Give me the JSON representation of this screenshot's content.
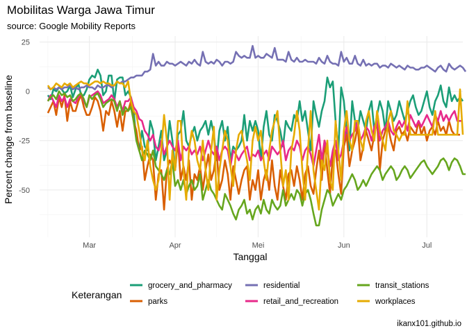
{
  "chart_data": {
    "type": "line",
    "title": "Mobilitas Warga Jawa Timur",
    "subtitle": "source: Google Mobility Reports",
    "xlabel": "Tanggal",
    "ylabel": "Percent change from baseline",
    "caption": "ikanx101.github.io",
    "legend_title": "Keterangan",
    "x_start": "2020-02-15",
    "x_step_days": 1,
    "xlim_days": [
      -3,
      150
    ],
    "ylim": [
      -74,
      28
    ],
    "x_ticks": [
      {
        "label": "Mar",
        "day": 15
      },
      {
        "label": "Apr",
        "day": 46
      },
      {
        "label": "Mei",
        "day": 76
      },
      {
        "label": "Jun",
        "day": 107
      },
      {
        "label": "Jul",
        "day": 137
      }
    ],
    "x_minor_days": [
      0,
      30.5,
      61,
      91.5,
      122,
      152
    ],
    "y_ticks": [
      25,
      0,
      -25,
      -50
    ],
    "y_minor": [
      12.5,
      -12.5,
      -37.5,
      -62.5
    ],
    "grid": true,
    "legend_position": "bottom",
    "series": [
      {
        "name": "grocery_and_pharmacy",
        "color": "#1b9e77",
        "values": [
          -2,
          -4,
          1,
          0,
          2,
          1,
          -1,
          0,
          3,
          -3,
          1,
          4,
          -2,
          -2,
          1,
          6,
          8,
          7,
          11,
          8,
          -2,
          0,
          8,
          8,
          -5,
          6,
          7,
          7,
          -2,
          0,
          -3,
          -10,
          -25,
          -30,
          -20,
          -28,
          -30,
          -15,
          -20,
          -35,
          -28,
          -20,
          -35,
          -30,
          -15,
          -25,
          -40,
          -22,
          -20,
          -10,
          -25,
          -28,
          -22,
          -18,
          -25,
          -20,
          -18,
          -15,
          -22,
          -15,
          -22,
          -35,
          -20,
          -15,
          -25,
          -18,
          -35,
          -28,
          -30,
          -28,
          -25,
          -12,
          -25,
          -15,
          -20,
          -15,
          -20,
          -35,
          -18,
          -10,
          -22,
          -25,
          -12,
          -15,
          -20,
          -28,
          -15,
          -18,
          -20,
          -12,
          -15,
          -5,
          -15,
          -10,
          -20,
          -30,
          -5,
          -12,
          -18,
          -10,
          -5,
          7,
          2,
          5,
          -15,
          -30,
          2,
          -5,
          -20,
          -30,
          -5,
          -15,
          -20,
          -10,
          -15,
          -20,
          -10,
          -5,
          -20,
          -12,
          -5,
          -10,
          -20,
          -5,
          -10,
          -15,
          -12,
          -5,
          -10,
          -15,
          -10,
          -5,
          -2,
          -8,
          -12,
          -10,
          -5,
          0,
          -8,
          -12,
          -5,
          -2,
          3,
          -5,
          -8,
          2,
          -5,
          -2,
          -5,
          -3,
          -5
        ]
      },
      {
        "name": "parks",
        "color": "#d95f02",
        "values": [
          -11,
          -8,
          -5,
          -12,
          -3,
          -8,
          -2,
          -15,
          -5,
          -10,
          -10,
          -5,
          -2,
          -8,
          -12,
          -12,
          -8,
          -3,
          -5,
          -10,
          -20,
          -10,
          -12,
          -5,
          -10,
          -18,
          -10,
          -20,
          -10,
          -10,
          -5,
          -15,
          -20,
          -30,
          -28,
          -45,
          -38,
          -32,
          -35,
          -55,
          -42,
          -40,
          -60,
          -40,
          -35,
          -38,
          -40,
          -25,
          -45,
          -38,
          -45,
          -35,
          -55,
          -42,
          -45,
          -38,
          -50,
          -40,
          -32,
          -45,
          -40,
          -30,
          -50,
          -45,
          -35,
          -42,
          -55,
          -38,
          -45,
          -52,
          -45,
          -40,
          -38,
          -55,
          -45,
          -50,
          -40,
          -55,
          -45,
          -40,
          -50,
          -35,
          -48,
          -55,
          -40,
          -48,
          -55,
          -42,
          -40,
          -48,
          -38,
          -45,
          -55,
          -42,
          -38,
          -48,
          -52,
          -40,
          -30,
          -45,
          -25,
          -40,
          -52,
          -32,
          -30,
          -42,
          -52,
          -28,
          -22,
          -38,
          -30,
          -25,
          -18,
          -35,
          -28,
          -20,
          -25,
          -30,
          -22,
          -15,
          -40,
          -25,
          -20,
          -18,
          -25,
          -30,
          -20,
          -18,
          -22,
          -20,
          -25,
          -18,
          -20,
          -22,
          -15,
          -22,
          -18,
          -25,
          -20,
          -18,
          -22,
          -15,
          -20,
          -18,
          -22,
          -15,
          -20,
          -22,
          -22,
          -22
        ]
      },
      {
        "name": "residential",
        "color": "#7570b3",
        "values": [
          2,
          1,
          2,
          1,
          2,
          1,
          2,
          2,
          3,
          1,
          2,
          1,
          2,
          2,
          3,
          2,
          2,
          1,
          3,
          2,
          2,
          3,
          3,
          2,
          3,
          5,
          4,
          5,
          5,
          6,
          7,
          7,
          8,
          8,
          8,
          10,
          10,
          11,
          19,
          13,
          15,
          13,
          13,
          15,
          14,
          14,
          13,
          14,
          15,
          14,
          13,
          15,
          14,
          16,
          14,
          13,
          20,
          15,
          14,
          15,
          14,
          16,
          15,
          13,
          15,
          15,
          14,
          15,
          20,
          18,
          17,
          18,
          17,
          17,
          23,
          17,
          18,
          17,
          17,
          19,
          18,
          17,
          22,
          16,
          16,
          16,
          15,
          20,
          16,
          15,
          17,
          15,
          15,
          16,
          15,
          15,
          15,
          14,
          17,
          15,
          14,
          18,
          15,
          14,
          14,
          13,
          20,
          15,
          17,
          14,
          14,
          18,
          14,
          13,
          16,
          13,
          14,
          13,
          14,
          14,
          12,
          13,
          13,
          12,
          14,
          13,
          12,
          13,
          12,
          11,
          13,
          12,
          12,
          11,
          11,
          12,
          12,
          13,
          12,
          11,
          10,
          12,
          13,
          11,
          10,
          14,
          12,
          11,
          12,
          13,
          12,
          10
        ]
      },
      {
        "name": "retail_and_recreation",
        "color": "#e7298a",
        "values": [
          -5,
          -2,
          -5,
          -8,
          -2,
          -5,
          -3,
          -8,
          -4,
          -5,
          -6,
          -3,
          -1,
          -5,
          -8,
          -3,
          -2,
          -1,
          0,
          -2,
          -6,
          -5,
          -4,
          -2,
          -4,
          -8,
          -5,
          -10,
          -5,
          -5,
          -3,
          -8,
          -10,
          -14,
          -15,
          -20,
          -22,
          -25,
          -22,
          -28,
          -30,
          -25,
          -32,
          -28,
          -25,
          -28,
          -30,
          -25,
          -35,
          -28,
          -30,
          -28,
          -32,
          -30,
          -32,
          -28,
          -35,
          -30,
          -25,
          -30,
          -32,
          -28,
          -35,
          -30,
          -28,
          -30,
          -38,
          -30,
          -32,
          -35,
          -32,
          -30,
          -28,
          -35,
          -32,
          -33,
          -30,
          -35,
          -32,
          -30,
          -35,
          -28,
          -30,
          -32,
          -30,
          -25,
          -35,
          -30,
          -28,
          -30,
          -25,
          -28,
          -35,
          -30,
          -28,
          -32,
          -38,
          -30,
          -22,
          -35,
          -25,
          -30,
          -38,
          -30,
          -25,
          -35,
          -32,
          -25,
          -18,
          -25,
          -22,
          -20,
          -15,
          -25,
          -22,
          -18,
          -20,
          -25,
          -18,
          -15,
          -25,
          -20,
          -18,
          -15,
          -20,
          -22,
          -18,
          -15,
          -18,
          -15,
          -20,
          -12,
          -15,
          -18,
          -15,
          -18,
          -15,
          -12,
          -15,
          -18,
          -12,
          -15,
          -10,
          -15,
          -12,
          -15,
          -12,
          -10,
          -15,
          -15,
          -15
        ]
      },
      {
        "name": "transit_stations",
        "color": "#66a61e",
        "values": [
          -5,
          -3,
          -2,
          -4,
          0,
          -2,
          -1,
          -3,
          -2,
          -5,
          -4,
          -2,
          -1,
          -4,
          -8,
          -2,
          -4,
          -2,
          -1,
          -4,
          -8,
          -6,
          -5,
          -4,
          -5,
          -10,
          -5,
          -12,
          -8,
          -10,
          -8,
          -15,
          -25,
          -30,
          -35,
          -30,
          -32,
          -35,
          -30,
          -38,
          -40,
          -42,
          -45,
          -40,
          -42,
          -35,
          -48,
          -45,
          -50,
          -45,
          -52,
          -48,
          -45,
          -50,
          -48,
          -42,
          -55,
          -50,
          -45,
          -50,
          -52,
          -55,
          -58,
          -60,
          -52,
          -55,
          -58,
          -62,
          -65,
          -60,
          -58,
          -55,
          -62,
          -60,
          -65,
          -60,
          -58,
          -62,
          -55,
          -60,
          -62,
          -55,
          -58,
          -60,
          -58,
          -50,
          -58,
          -55,
          -52,
          -55,
          -50,
          -52,
          -58,
          -52,
          -50,
          -55,
          -62,
          -68,
          -68,
          -60,
          -55,
          -50,
          -52,
          -58,
          -55,
          -52,
          -55,
          -50,
          -48,
          -45,
          -42,
          -45,
          -50,
          -48,
          -45,
          -48,
          -45,
          -42,
          -40,
          -38,
          -40,
          -45,
          -42,
          -40,
          -38,
          -40,
          -45,
          -43,
          -40,
          -38,
          -40,
          -44,
          -42,
          -40,
          -38,
          -36,
          -35,
          -38,
          -40,
          -42,
          -40,
          -38,
          -35,
          -34,
          -36,
          -40,
          -36,
          -34,
          -35,
          -38,
          -42,
          -42
        ]
      },
      {
        "name": "workplaces",
        "color": "#e6ab02",
        "values": [
          3,
          1,
          2,
          4,
          3,
          2,
          4,
          3,
          4,
          2,
          3,
          4,
          5,
          4,
          4,
          3,
          4,
          5,
          5,
          4,
          5,
          4,
          4,
          3,
          3,
          5,
          4,
          4,
          2,
          5,
          -5,
          -10,
          -12,
          -20,
          -30,
          -35,
          -25,
          -38,
          -45,
          -50,
          -45,
          -30,
          -12,
          -25,
          -55,
          -30,
          -40,
          -15,
          -15,
          -40,
          -55,
          -30,
          -20,
          -25,
          -35,
          -40,
          -25,
          -40,
          -50,
          -30,
          -18,
          -55,
          -40,
          -30,
          -20,
          -25,
          -38,
          -48,
          -30,
          -22,
          -20,
          -28,
          -35,
          -45,
          -25,
          -18,
          -25,
          -20,
          -35,
          -45,
          -30,
          -20,
          -15,
          -10,
          -30,
          -48,
          -40,
          -55,
          -30,
          -22,
          -10,
          -20,
          -40,
          -55,
          -30,
          -10,
          -40,
          -50,
          -60,
          -35,
          -40,
          -25,
          -45,
          -50,
          -15,
          -30,
          -45,
          -20,
          -10,
          -25,
          -30,
          -15,
          -15,
          -25,
          -30,
          -15,
          -10,
          -20,
          -25,
          -10,
          -20,
          -25,
          -30,
          -15,
          -10,
          -20,
          -22,
          -25,
          -22,
          -22,
          -5,
          -22,
          -22,
          -22,
          -22,
          -22,
          -22,
          -22,
          -22,
          -22,
          -10,
          -22,
          -22,
          -22,
          -22,
          -22,
          -22,
          -22,
          -22,
          1,
          -22
        ]
      }
    ]
  }
}
